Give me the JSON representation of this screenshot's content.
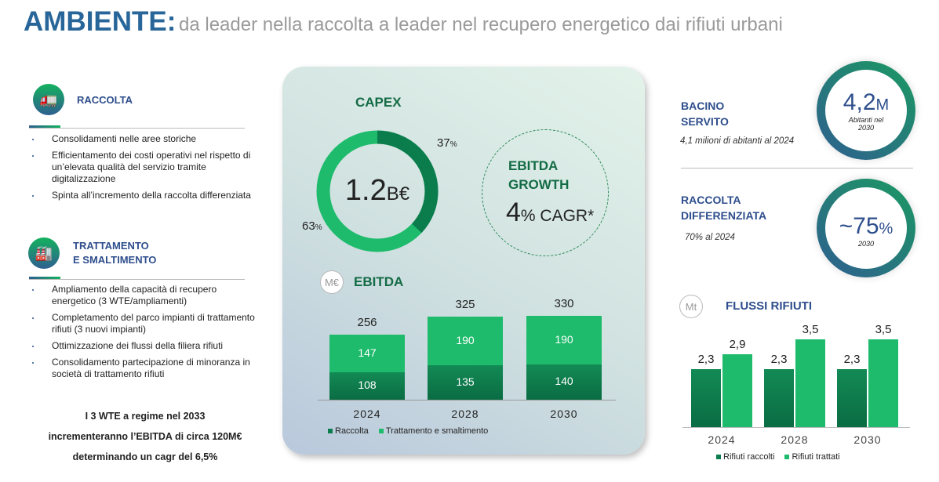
{
  "title": {
    "main": "AMBIENTE:",
    "sub": "da leader nella raccolta a leader nel recupero energetico dai rifiuti urbani"
  },
  "raccolta": {
    "heading": "RACCOLTA",
    "icon": "garbage-truck-icon",
    "bullets": [
      "Consolidamenti nelle aree storiche",
      "Efficientamento dei costi operativi nel rispetto di un’elevata qualità del servizio tramite digitalizzazione",
      "Spinta all’incremento della raccolta differenziata"
    ]
  },
  "trattamento": {
    "heading1": "TRATTAMENTO",
    "heading2": "E SMALTIMENTO",
    "icon": "factory-icon",
    "bullets": [
      "Ampliamento della capacità di recupero energetico (3 WTE/ampliamenti)",
      "Completamento del parco impianti di trattamento rifiuti (3 nuovi impianti)",
      "Ottimizzazione dei flussi della filiera rifiuti",
      "Consolidamento partecipazione di minoranza in società di trattamento rifiuti"
    ]
  },
  "note": [
    "I 3 WTE a regime nel 2033",
    "incrementeranno l’EBITDA di circa 120M€",
    "determinando un cagr del 6,5%"
  ],
  "capex": {
    "heading": "CAPEX",
    "total": "1.2",
    "total_unit": "B€",
    "labels": [
      "37",
      "63"
    ],
    "pct_sign": "%"
  },
  "growth": {
    "line1": "EBITDA",
    "line2": "GROWTH",
    "value": "4",
    "unit": "% CAGR*"
  },
  "ebitda": {
    "heading": "EBITDA",
    "unit_badge": "M€"
  },
  "kpis": {
    "bacino": {
      "h1": "BACINO",
      "h2": "SERVITO",
      "sub": "4,1 milioni di abitanti al 2024",
      "value": "4,2",
      "unit": "M",
      "caption1": "Abitanti nel",
      "caption2": "2030"
    },
    "differenziata": {
      "h1": "RACCOLTA",
      "h2": "DIFFERENZIATA",
      "sub": "70% al 2024",
      "value": "~75",
      "unit": "%",
      "caption": "2030"
    }
  },
  "flussi": {
    "heading": "FLUSSI RIFIUTI",
    "unit_badge": "Mt"
  },
  "colors": {
    "dark_green": "#0b7c4c",
    "light_green": "#1dbb6b",
    "blue": "#2e4e8c"
  },
  "chart_data": [
    {
      "type": "pie",
      "title": "CAPEX",
      "total": "1.2B€",
      "slices": [
        {
          "name": "segment-dark",
          "value": 37
        },
        {
          "name": "segment-light",
          "value": 63
        }
      ]
    },
    {
      "type": "bar",
      "stacked": true,
      "title": "EBITDA",
      "unit": "M€",
      "categories": [
        "2024",
        "2028",
        "2030"
      ],
      "series": [
        {
          "name": "Raccolta",
          "values": [
            108,
            135,
            140
          ]
        },
        {
          "name": "Trattamento e smaltimento",
          "values": [
            147,
            190,
            190
          ]
        }
      ],
      "totals": [
        256,
        325,
        330
      ],
      "legend": "bottom"
    },
    {
      "type": "bar",
      "title": "FLUSSI RIFIUTI",
      "unit": "Mt",
      "categories": [
        "2024",
        "2028",
        "2030"
      ],
      "series": [
        {
          "name": "Rifiuti raccolti",
          "values": [
            2.3,
            2.3,
            2.3
          ],
          "labels": [
            "2,3",
            "2,3",
            "2,3"
          ]
        },
        {
          "name": "Rifiuti trattati",
          "values": [
            2.9,
            3.5,
            3.5
          ],
          "labels": [
            "2,9",
            "3,5",
            "3,5"
          ]
        }
      ],
      "legend": "bottom"
    }
  ]
}
